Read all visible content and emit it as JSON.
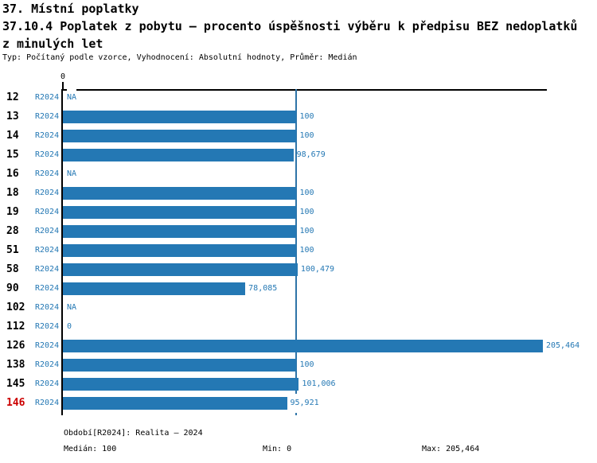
{
  "header": {
    "title_line1": "37. Místní poplatky",
    "title_line2": "37.10.4 Poplatek z pobytu – procento úspěšnosti výběru k předpisu BEZ nedoplatků",
    "title_line3": "z minulých let",
    "meta": "Typ: Počítaný podle vzorce, Vyhodnocení: Absolutní hodnoty, Průměr: Medián"
  },
  "chart_data": {
    "type": "bar",
    "orientation": "horizontal",
    "title": "37.10.4 Poplatek z pobytu – procento úspěšnosti výběru k předpisu BEZ nedoplatků z minulých let",
    "period_label": "R2024",
    "axis": {
      "min": 0,
      "max": 205.464,
      "median": 100,
      "zero_tick_label": "0"
    },
    "legend_position": "none",
    "grid": false,
    "categories": [
      "12",
      "13",
      "14",
      "15",
      "16",
      "18",
      "19",
      "28",
      "51",
      "58",
      "90",
      "102",
      "112",
      "126",
      "138",
      "145",
      "146"
    ],
    "series": [
      {
        "name": "R2024",
        "values": [
          null,
          100,
          100,
          98.679,
          null,
          100,
          100,
          100,
          100,
          100.479,
          78.085,
          null,
          0,
          205.464,
          100,
          101.006,
          95.921
        ]
      }
    ],
    "rows": [
      {
        "id": "12",
        "period": "R2024",
        "value": null,
        "label": "NA",
        "highlight": false
      },
      {
        "id": "13",
        "period": "R2024",
        "value": 100,
        "label": "100",
        "highlight": false
      },
      {
        "id": "14",
        "period": "R2024",
        "value": 100,
        "label": "100",
        "highlight": false
      },
      {
        "id": "15",
        "period": "R2024",
        "value": 98.679,
        "label": "98,679",
        "highlight": false
      },
      {
        "id": "16",
        "period": "R2024",
        "value": null,
        "label": "NA",
        "highlight": false
      },
      {
        "id": "18",
        "period": "R2024",
        "value": 100,
        "label": "100",
        "highlight": false
      },
      {
        "id": "19",
        "period": "R2024",
        "value": 100,
        "label": "100",
        "highlight": false
      },
      {
        "id": "28",
        "period": "R2024",
        "value": 100,
        "label": "100",
        "highlight": false
      },
      {
        "id": "51",
        "period": "R2024",
        "value": 100,
        "label": "100",
        "highlight": false
      },
      {
        "id": "58",
        "period": "R2024",
        "value": 100.479,
        "label": "100,479",
        "highlight": false
      },
      {
        "id": "90",
        "period": "R2024",
        "value": 78.085,
        "label": "78,085",
        "highlight": false
      },
      {
        "id": "102",
        "period": "R2024",
        "value": null,
        "label": "NA",
        "highlight": false
      },
      {
        "id": "112",
        "period": "R2024",
        "value": 0,
        "label": "0",
        "highlight": false
      },
      {
        "id": "126",
        "period": "R2024",
        "value": 205.464,
        "label": "205,464",
        "highlight": false
      },
      {
        "id": "138",
        "period": "R2024",
        "value": 100,
        "label": "100",
        "highlight": false
      },
      {
        "id": "145",
        "period": "R2024",
        "value": 101.006,
        "label": "101,006",
        "highlight": false
      },
      {
        "id": "146",
        "period": "R2024",
        "value": 95.921,
        "label": "95,921",
        "highlight": true
      }
    ],
    "colors": {
      "bar": "#2478b4",
      "median_line": "#2e74a8",
      "blue_text": "#2478b4",
      "highlight_text": "#cc0000"
    }
  },
  "footer": {
    "period_info": "Období[R2024]: Realita – 2024",
    "median": "Medián: 100",
    "min": "Min: 0",
    "max": "Max: 205,464"
  }
}
